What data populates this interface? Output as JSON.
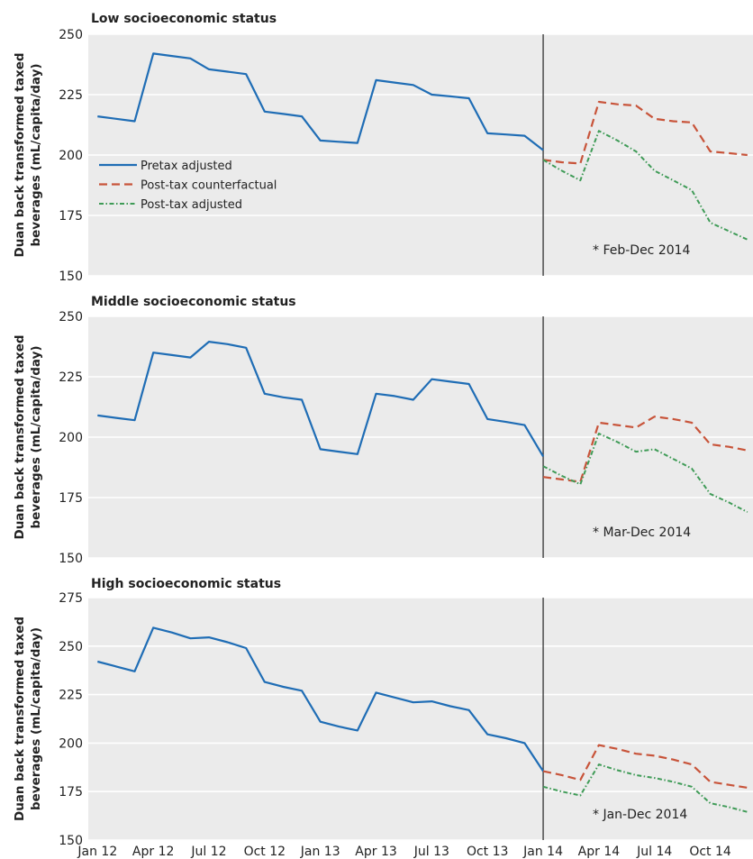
{
  "colors": {
    "background": "#ebebeb",
    "grid": "#ffffff",
    "pretax": "#1f6db5",
    "counterfactual": "#c8543a",
    "posttax": "#3f9b57",
    "tax_line": "#333333"
  },
  "x_axis": {
    "tick_labels": [
      "Jan 12",
      "Apr 12",
      "Jul 12",
      "Oct 12",
      "Jan 13",
      "Apr 13",
      "Jul 13",
      "Oct 13",
      "Jan 14",
      "Apr 14",
      "Jul 14",
      "Oct 14"
    ],
    "tick_months": [
      0,
      3,
      6,
      9,
      12,
      15,
      18,
      21,
      24,
      27,
      30,
      33
    ],
    "xlim": [
      -0.5,
      35.3
    ],
    "tax_month": 24
  },
  "legend": {
    "placement": "upper-left of first panel",
    "entries": [
      {
        "key": "pretax",
        "label": "Pretax adjusted"
      },
      {
        "key": "counterfactual",
        "label": "Post-tax counterfactual"
      },
      {
        "key": "posttax",
        "label": "Post-tax adjusted"
      }
    ]
  },
  "chart_data": [
    {
      "type": "line",
      "title": "Low socioeconomic status",
      "ylabel_lines": [
        "Duan back transformed taxed",
        "beverages (mL/capita/day)"
      ],
      "ylim": [
        150,
        250
      ],
      "yticks": [
        150,
        175,
        200,
        225,
        250
      ],
      "note": "* Feb-Dec 2014",
      "series": [
        {
          "key": "pretax",
          "name": "Pretax adjusted",
          "x": [
            0,
            1,
            2,
            3,
            4,
            5,
            6,
            7,
            8,
            9,
            10,
            11,
            12,
            13,
            14,
            15,
            16,
            17,
            18,
            19,
            20,
            21,
            22,
            23,
            24
          ],
          "y": [
            216,
            215,
            214,
            242,
            241,
            240,
            235.5,
            234.5,
            233.5,
            218,
            217,
            216,
            206,
            205.5,
            205,
            231,
            230,
            229,
            225,
            224.3,
            223.5,
            209,
            208.5,
            208,
            202
          ]
        },
        {
          "key": "counterfactual",
          "name": "Post-tax counterfactual",
          "x": [
            24,
            25,
            26,
            27,
            28,
            29,
            30,
            31,
            32,
            33,
            34,
            35
          ],
          "y": [
            198,
            197,
            196.5,
            222,
            221,
            220.5,
            215,
            214,
            213.5,
            201.5,
            200.8,
            200
          ]
        },
        {
          "key": "posttax",
          "name": "Post-tax adjusted",
          "x": [
            24,
            25,
            26,
            27,
            28,
            29,
            30,
            31,
            32,
            33,
            34,
            35
          ],
          "y": [
            198,
            193.5,
            189.5,
            210,
            206,
            201.5,
            193.5,
            189.5,
            185.5,
            172,
            168.5,
            165
          ]
        }
      ]
    },
    {
      "type": "line",
      "title": "Middle socioeconomic status",
      "ylabel_lines": [
        "Duan back transformed taxed",
        "beverages (mL/capita/day)"
      ],
      "ylim": [
        150,
        250
      ],
      "yticks": [
        150,
        175,
        200,
        225,
        250
      ],
      "note": "* Mar-Dec 2014",
      "series": [
        {
          "key": "pretax",
          "name": "Pretax adjusted",
          "x": [
            0,
            1,
            2,
            3,
            4,
            5,
            6,
            7,
            8,
            9,
            10,
            11,
            12,
            13,
            14,
            15,
            16,
            17,
            18,
            19,
            20,
            21,
            22,
            23,
            24
          ],
          "y": [
            209,
            208,
            207,
            235,
            234,
            233,
            239.5,
            238.5,
            237,
            218,
            216.5,
            215.5,
            195,
            194,
            193,
            218,
            217,
            215.5,
            224,
            223,
            222,
            207.5,
            206.3,
            205,
            192
          ]
        },
        {
          "key": "counterfactual",
          "name": "Post-tax counterfactual",
          "x": [
            24,
            25,
            26,
            27,
            28,
            29,
            30,
            31,
            32,
            33,
            34,
            35
          ],
          "y": [
            183.5,
            182.5,
            181.5,
            206,
            205,
            204,
            208.5,
            207.5,
            206,
            197,
            196,
            194.5
          ]
        },
        {
          "key": "posttax",
          "name": "Post-tax adjusted",
          "x": [
            24,
            25,
            26,
            27,
            28,
            29,
            30,
            31,
            32,
            33,
            34,
            35
          ],
          "y": [
            188,
            184,
            180.5,
            201.5,
            198,
            194,
            195,
            191,
            187,
            176.5,
            173,
            169
          ]
        }
      ]
    },
    {
      "type": "line",
      "title": "High socioeconomic status",
      "ylabel_lines": [
        "Duan back transformed taxed",
        "beverages (mL/capita/day)"
      ],
      "ylim": [
        150,
        275
      ],
      "yticks": [
        150,
        175,
        200,
        225,
        250,
        275
      ],
      "note": "* Jan-Dec 2014",
      "series": [
        {
          "key": "pretax",
          "name": "Pretax adjusted",
          "x": [
            0,
            1,
            2,
            3,
            4,
            5,
            6,
            7,
            8,
            9,
            10,
            11,
            12,
            13,
            14,
            15,
            16,
            17,
            18,
            19,
            20,
            21,
            22,
            23,
            24
          ],
          "y": [
            242,
            239.5,
            237,
            259.5,
            257,
            254,
            254.5,
            252,
            249,
            231.5,
            229,
            227,
            211,
            208.5,
            206.5,
            226,
            223.5,
            221,
            221.5,
            219,
            217,
            204.5,
            202.5,
            200,
            185.5
          ]
        },
        {
          "key": "counterfactual",
          "name": "Post-tax counterfactual",
          "x": [
            24,
            25,
            26,
            27,
            28,
            29,
            30,
            31,
            32,
            33,
            34,
            35
          ],
          "y": [
            185.5,
            183.5,
            181,
            199,
            197,
            194.5,
            193.5,
            191.5,
            189,
            180,
            178.5,
            177
          ]
        },
        {
          "key": "posttax",
          "name": "Post-tax adjusted",
          "x": [
            24,
            25,
            26,
            27,
            28,
            29,
            30,
            31,
            32,
            33,
            34,
            35
          ],
          "y": [
            177.5,
            175,
            173,
            189,
            186,
            183.5,
            182,
            180,
            177.5,
            169,
            167,
            164.5
          ]
        }
      ]
    }
  ]
}
